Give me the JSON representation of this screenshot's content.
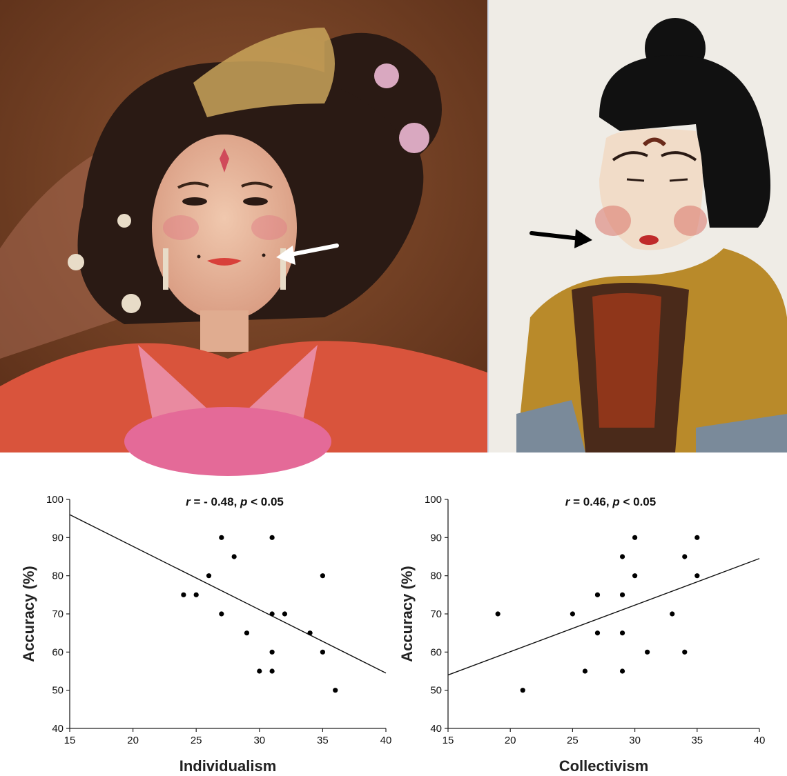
{
  "photos": [
    {
      "label": "",
      "arrow_color": "#ffffff"
    },
    {
      "label": "",
      "arrow_color": "#000000"
    }
  ],
  "colors": {
    "left_photo_bg": "#6b3a20",
    "robe_red": "#d9543c",
    "robe_pink": "#e98aa0",
    "skin": "#e8b89a",
    "hair": "#2a1a14",
    "right_photo_bg": "#efece6",
    "figurine_hair": "#111111",
    "figurine_robe": "#b98a2a",
    "figurine_face": "#f1dcc8"
  },
  "chart_data": [
    {
      "type": "scatter",
      "title": "",
      "stat_r": "r",
      "stat_mid": " = - 0.48, ",
      "stat_p": "p",
      "stat_tail": " < 0.05",
      "xlabel": "Individualism",
      "ylabel": "Accuracy (%)",
      "xlim": [
        15,
        40
      ],
      "ylim": [
        40,
        100
      ],
      "xticks": [
        15,
        20,
        25,
        30,
        35,
        40
      ],
      "yticks": [
        40,
        50,
        60,
        70,
        80,
        90,
        100
      ],
      "points": [
        [
          24,
          75
        ],
        [
          25,
          75
        ],
        [
          26,
          80
        ],
        [
          27,
          90
        ],
        [
          27,
          70
        ],
        [
          28,
          85
        ],
        [
          29,
          65
        ],
        [
          30,
          55
        ],
        [
          31,
          90
        ],
        [
          31,
          70
        ],
        [
          31,
          60
        ],
        [
          31,
          55
        ],
        [
          32,
          70
        ],
        [
          34,
          65
        ],
        [
          35,
          80
        ],
        [
          35,
          60
        ],
        [
          36,
          50
        ]
      ],
      "fit_line": {
        "x": [
          15,
          40
        ],
        "y": [
          96,
          54.5
        ]
      },
      "grid": false
    },
    {
      "type": "scatter",
      "title": "",
      "stat_r": "r",
      "stat_mid": " = 0.46, ",
      "stat_p": "p",
      "stat_tail": " < 0.05",
      "xlabel": "Collectivism",
      "ylabel": "Accuracy (%)",
      "xlim": [
        15,
        40
      ],
      "ylim": [
        40,
        100
      ],
      "xticks": [
        15,
        20,
        25,
        30,
        35,
        40
      ],
      "yticks": [
        40,
        50,
        60,
        70,
        80,
        90,
        100
      ],
      "points": [
        [
          19,
          70
        ],
        [
          21,
          50
        ],
        [
          25,
          70
        ],
        [
          26,
          55
        ],
        [
          27,
          75
        ],
        [
          27,
          65
        ],
        [
          29,
          85
        ],
        [
          29,
          75
        ],
        [
          29,
          65
        ],
        [
          29,
          55
        ],
        [
          30,
          90
        ],
        [
          30,
          80
        ],
        [
          31,
          60
        ],
        [
          33,
          70
        ],
        [
          34,
          85
        ],
        [
          34,
          60
        ],
        [
          35,
          90
        ],
        [
          35,
          80
        ]
      ],
      "fit_line": {
        "x": [
          15,
          40
        ],
        "y": [
          54,
          84.5
        ]
      },
      "grid": false
    }
  ]
}
